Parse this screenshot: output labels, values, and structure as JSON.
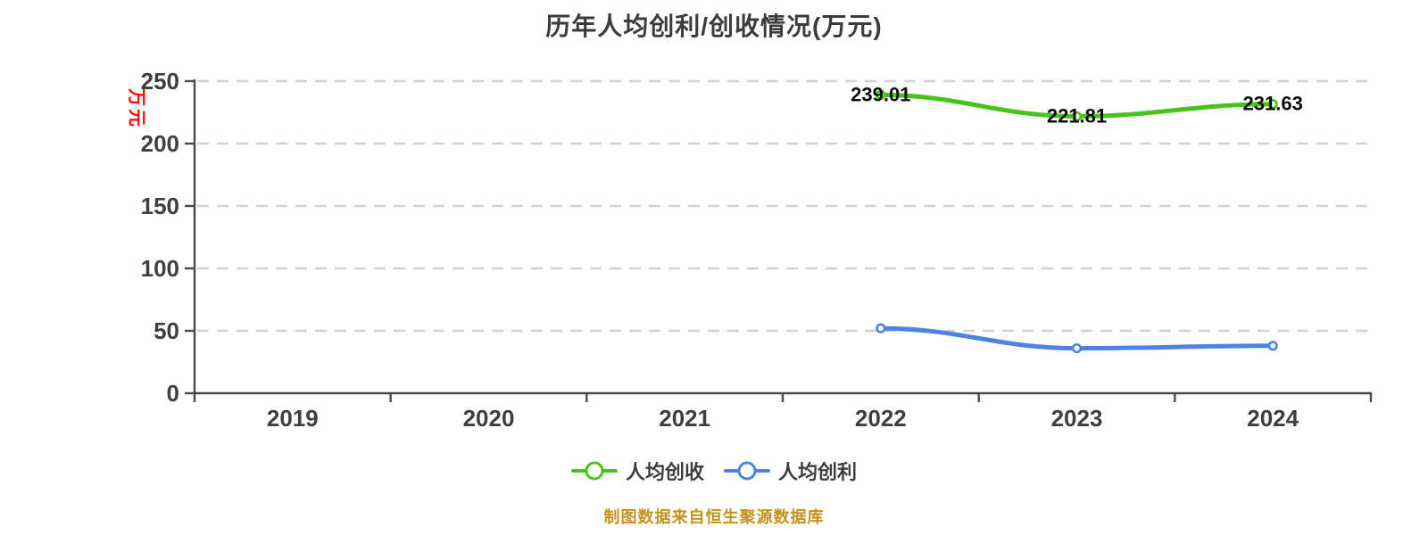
{
  "title": "历年人均创利/创收情况(万元)",
  "y_axis": {
    "unit_label": "万元"
  },
  "footer_note": "制图数据来自恒生聚源数据库",
  "accents": {
    "unit_label_red": "#fe0000",
    "footer_gold": "#c3931f",
    "axis_gray": "#4a4a4a",
    "gridline_gray": "#d2d2d2"
  },
  "chart_data": {
    "type": "line",
    "title": "历年人均创利/创收情况(万元)",
    "categories": [
      "2019",
      "2020",
      "2021",
      "2022",
      "2023",
      "2024"
    ],
    "series": [
      {
        "name": "人均创收",
        "color": "#49c31c",
        "values": [
          null,
          null,
          null,
          239.01,
          221.81,
          231.63
        ],
        "labels_shown": true,
        "point_labels": [
          "239.01",
          "221.81",
          "231.63"
        ]
      },
      {
        "name": "人均创利",
        "color": "#4f83e3",
        "values": [
          null,
          null,
          null,
          52,
          36,
          38
        ],
        "labels_shown": false,
        "estimated": true
      }
    ],
    "ylim": [
      0,
      250
    ],
    "y_tick_step": 50,
    "y_unit": "万元",
    "grid": "horizontal-dashed",
    "legend_position": "bottom",
    "smooth": true
  }
}
